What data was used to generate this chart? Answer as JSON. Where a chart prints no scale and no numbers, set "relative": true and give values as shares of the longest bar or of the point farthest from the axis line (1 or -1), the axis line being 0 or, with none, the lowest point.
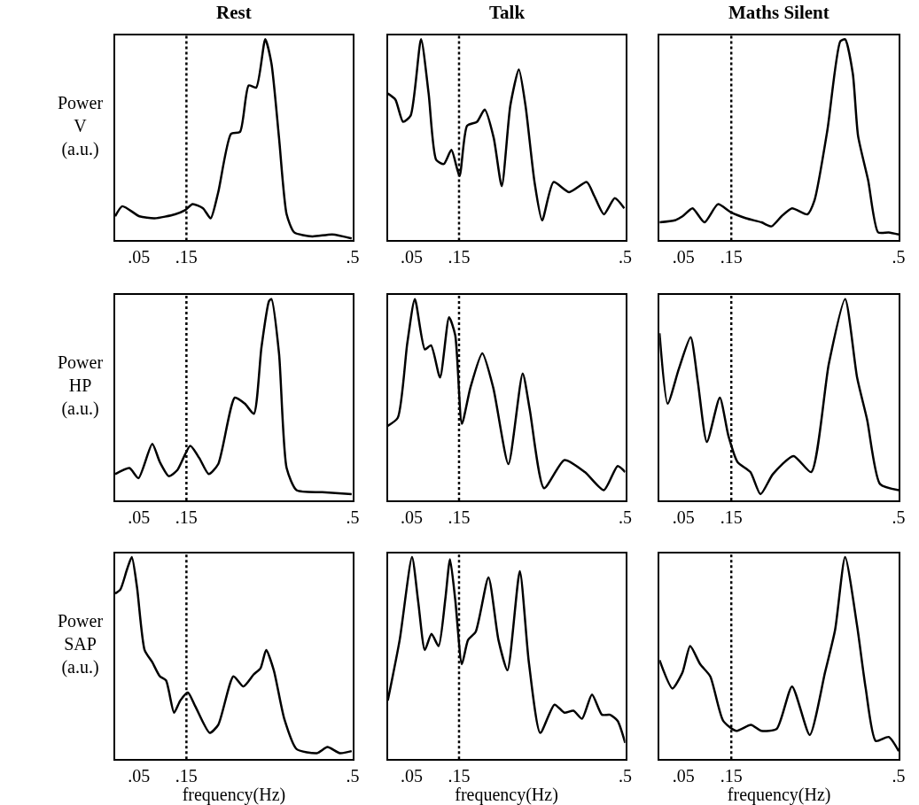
{
  "chart_data": [
    {
      "type": "line",
      "title": "Rest",
      "ylabel": "Power\nV\n(a.u.)",
      "relative": true,
      "xlim": [
        0,
        0.5
      ],
      "xticks": [
        {
          "value": 0.05,
          "label": ".05"
        },
        {
          "value": 0.15,
          "label": ".15"
        },
        {
          "value": 0.5,
          "label": ".5"
        }
      ],
      "ref_lines": [
        {
          "axis": "x",
          "value": 0.15,
          "color": "#000000",
          "line_style": "dotted"
        }
      ],
      "x": [
        0,
        0.015,
        0.051,
        0.083,
        0.126,
        0.147,
        0.163,
        0.185,
        0.201,
        0.217,
        0.244,
        0.263,
        0.281,
        0.297,
        0.316,
        0.329,
        0.345,
        0.361,
        0.377,
        0.415,
        0.457,
        0.498
      ],
      "series": [
        {
          "color": "#000000",
          "values": [
            0.12,
            0.17,
            0.12,
            0.11,
            0.13,
            0.15,
            0.18,
            0.16,
            0.11,
            0.24,
            0.53,
            0.54,
            0.77,
            0.76,
            1,
            0.88,
            0.51,
            0.13,
            0.04,
            0.02,
            0.03,
            0.01
          ]
        }
      ]
    },
    {
      "type": "line",
      "title": "Talk",
      "relative": true,
      "xlim": [
        0,
        0.5
      ],
      "xticks": [
        {
          "value": 0.05,
          "label": ".05"
        },
        {
          "value": 0.15,
          "label": ".15"
        },
        {
          "value": 0.5,
          "label": ".5"
        }
      ],
      "ref_lines": [
        {
          "axis": "x",
          "value": 0.15,
          "color": "#000000",
          "line_style": "dotted"
        }
      ],
      "x": [
        0,
        0.016,
        0.032,
        0.048,
        0.07,
        0.086,
        0.102,
        0.118,
        0.134,
        0.151,
        0.167,
        0.188,
        0.204,
        0.223,
        0.24,
        0.258,
        0.276,
        0.29,
        0.309,
        0.325,
        0.349,
        0.382,
        0.419,
        0.435,
        0.455,
        0.478,
        0.498
      ],
      "series": [
        {
          "color": "#000000",
          "values": [
            0.73,
            0.7,
            0.59,
            0.62,
            1,
            0.73,
            0.4,
            0.38,
            0.45,
            0.32,
            0.57,
            0.59,
            0.65,
            0.51,
            0.27,
            0.67,
            0.85,
            0.67,
            0.29,
            0.1,
            0.29,
            0.24,
            0.29,
            0.22,
            0.13,
            0.21,
            0.16
          ]
        }
      ]
    },
    {
      "type": "line",
      "title": "Maths Silent",
      "relative": true,
      "xlim": [
        0,
        0.5
      ],
      "xticks": [
        {
          "value": 0.05,
          "label": ".05"
        },
        {
          "value": 0.15,
          "label": ".15"
        },
        {
          "value": 0.5,
          "label": ".5"
        }
      ],
      "ref_lines": [
        {
          "axis": "x",
          "value": 0.15,
          "color": "#000000",
          "line_style": "dotted"
        }
      ],
      "x": [
        0,
        0.032,
        0.048,
        0.069,
        0.094,
        0.122,
        0.149,
        0.181,
        0.213,
        0.234,
        0.255,
        0.277,
        0.309,
        0.324,
        0.351,
        0.378,
        0.388,
        0.404,
        0.415,
        0.436,
        0.457,
        0.479,
        0.5
      ],
      "series": [
        {
          "color": "#000000",
          "values": [
            0.09,
            0.1,
            0.12,
            0.16,
            0.09,
            0.18,
            0.14,
            0.11,
            0.09,
            0.07,
            0.12,
            0.16,
            0.13,
            0.2,
            0.55,
            0.99,
            1,
            0.83,
            0.52,
            0.3,
            0.04,
            0.04,
            0.03
          ]
        }
      ]
    },
    {
      "type": "line",
      "ylabel": "Power\nHP\n(a.u.)",
      "relative": true,
      "xlim": [
        0,
        0.5
      ],
      "xticks": [
        {
          "value": 0.05,
          "label": ".05"
        },
        {
          "value": 0.15,
          "label": ".15"
        },
        {
          "value": 0.5,
          "label": ".5"
        }
      ],
      "ref_lines": [
        {
          "axis": "x",
          "value": 0.15,
          "color": "#000000",
          "line_style": "dotted"
        }
      ],
      "x": [
        0,
        0.03,
        0.049,
        0.078,
        0.094,
        0.113,
        0.131,
        0.158,
        0.177,
        0.197,
        0.217,
        0.252,
        0.273,
        0.292,
        0.308,
        0.324,
        0.329,
        0.345,
        0.361,
        0.382,
        0.436,
        0.498
      ],
      "series": [
        {
          "color": "#000000",
          "values": [
            0.13,
            0.16,
            0.11,
            0.28,
            0.19,
            0.12,
            0.15,
            0.27,
            0.21,
            0.13,
            0.18,
            0.51,
            0.48,
            0.43,
            0.76,
            0.99,
            1,
            0.73,
            0.16,
            0.05,
            0.04,
            0.03
          ]
        }
      ]
    },
    {
      "type": "line",
      "relative": true,
      "xlim": [
        0,
        0.5
      ],
      "xticks": [
        {
          "value": 0.05,
          "label": ".05"
        },
        {
          "value": 0.15,
          "label": ".15"
        },
        {
          "value": 0.5,
          "label": ".5"
        }
      ],
      "ref_lines": [
        {
          "axis": "x",
          "value": 0.15,
          "color": "#000000",
          "line_style": "dotted"
        }
      ],
      "x": [
        0,
        0.021,
        0.041,
        0.057,
        0.078,
        0.091,
        0.11,
        0.129,
        0.142,
        0.156,
        0.174,
        0.199,
        0.222,
        0.254,
        0.284,
        0.299,
        0.329,
        0.372,
        0.415,
        0.455,
        0.484,
        0.5
      ],
      "series": [
        {
          "color": "#000000",
          "values": [
            0.37,
            0.41,
            0.78,
            1,
            0.75,
            0.77,
            0.61,
            0.91,
            0.82,
            0.38,
            0.56,
            0.73,
            0.56,
            0.18,
            0.63,
            0.45,
            0.06,
            0.2,
            0.14,
            0.05,
            0.17,
            0.14
          ]
        }
      ]
    },
    {
      "type": "line",
      "relative": true,
      "xlim": [
        0,
        0.5
      ],
      "xticks": [
        {
          "value": 0.05,
          "label": ".05"
        },
        {
          "value": 0.15,
          "label": ".15"
        },
        {
          "value": 0.5,
          "label": ".5"
        }
      ],
      "ref_lines": [
        {
          "axis": "x",
          "value": 0.15,
          "color": "#000000",
          "line_style": "dotted"
        }
      ],
      "x": [
        0,
        0.017,
        0.04,
        0.065,
        0.08,
        0.099,
        0.126,
        0.144,
        0.163,
        0.19,
        0.211,
        0.237,
        0.28,
        0.317,
        0.354,
        0.388,
        0.413,
        0.434,
        0.461,
        0.5
      ],
      "series": [
        {
          "color": "#000000",
          "values": [
            0.83,
            0.48,
            0.65,
            0.81,
            0.59,
            0.29,
            0.51,
            0.32,
            0.19,
            0.14,
            0.03,
            0.13,
            0.22,
            0.14,
            0.68,
            1,
            0.61,
            0.4,
            0.08,
            0.05
          ]
        }
      ]
    },
    {
      "type": "line",
      "ylabel": "Power\nSAP\n(a.u.)",
      "xlabel": "frequency(Hz)",
      "relative": true,
      "xlim": [
        0,
        0.5
      ],
      "xticks": [
        {
          "value": 0.05,
          "label": ".05"
        },
        {
          "value": 0.15,
          "label": ".15"
        },
        {
          "value": 0.5,
          "label": ".5"
        }
      ],
      "ref_lines": [
        {
          "axis": "x",
          "value": 0.15,
          "color": "#000000",
          "line_style": "dotted"
        }
      ],
      "x": [
        0,
        0.011,
        0.025,
        0.035,
        0.046,
        0.062,
        0.078,
        0.094,
        0.107,
        0.124,
        0.137,
        0.153,
        0.169,
        0.199,
        0.217,
        0.249,
        0.27,
        0.292,
        0.306,
        0.318,
        0.334,
        0.356,
        0.382,
        0.425,
        0.447,
        0.473,
        0.498
      ],
      "series": [
        {
          "color": "#000000",
          "values": [
            0.82,
            0.84,
            0.94,
            1,
            0.85,
            0.54,
            0.48,
            0.41,
            0.39,
            0.23,
            0.29,
            0.33,
            0.26,
            0.13,
            0.17,
            0.41,
            0.36,
            0.42,
            0.45,
            0.54,
            0.44,
            0.2,
            0.05,
            0.03,
            0.06,
            0.03,
            0.04
          ]
        }
      ]
    },
    {
      "type": "line",
      "xlabel": "frequency(Hz)",
      "relative": true,
      "xlim": [
        0,
        0.5
      ],
      "xticks": [
        {
          "value": 0.05,
          "label": ".05"
        },
        {
          "value": 0.15,
          "label": ".15"
        },
        {
          "value": 0.5,
          "label": ".5"
        }
      ],
      "ref_lines": [
        {
          "axis": "x",
          "value": 0.15,
          "color": "#000000",
          "line_style": "dotted"
        }
      ],
      "x": [
        0,
        0.025,
        0.051,
        0.064,
        0.078,
        0.092,
        0.107,
        0.121,
        0.131,
        0.142,
        0.156,
        0.169,
        0.185,
        0.212,
        0.233,
        0.252,
        0.278,
        0.297,
        0.321,
        0.351,
        0.372,
        0.391,
        0.409,
        0.43,
        0.451,
        0.468,
        0.484,
        0.5
      ],
      "series": [
        {
          "color": "#000000",
          "values": [
            0.29,
            0.59,
            1,
            0.78,
            0.54,
            0.62,
            0.56,
            0.79,
            0.99,
            0.79,
            0.47,
            0.59,
            0.63,
            0.9,
            0.59,
            0.44,
            0.93,
            0.48,
            0.13,
            0.27,
            0.23,
            0.24,
            0.2,
            0.32,
            0.22,
            0.22,
            0.19,
            0.08
          ]
        }
      ]
    },
    {
      "type": "line",
      "xlabel": "frequency(Hz)",
      "relative": true,
      "xlim": [
        0,
        0.5
      ],
      "xticks": [
        {
          "value": 0.05,
          "label": ".05"
        },
        {
          "value": 0.15,
          "label": ".15"
        },
        {
          "value": 0.5,
          "label": ".5"
        }
      ],
      "ref_lines": [
        {
          "axis": "x",
          "value": 0.15,
          "color": "#000000",
          "line_style": "dotted"
        }
      ],
      "x": [
        0,
        0.027,
        0.048,
        0.064,
        0.085,
        0.106,
        0.133,
        0.16,
        0.191,
        0.213,
        0.245,
        0.277,
        0.314,
        0.346,
        0.367,
        0.388,
        0.413,
        0.431,
        0.452,
        0.479,
        0.5
      ],
      "series": [
        {
          "color": "#000000",
          "values": [
            0.49,
            0.35,
            0.43,
            0.56,
            0.47,
            0.41,
            0.19,
            0.14,
            0.17,
            0.14,
            0.15,
            0.36,
            0.12,
            0.43,
            0.64,
            1,
            0.66,
            0.35,
            0.09,
            0.11,
            0.04
          ]
        }
      ]
    }
  ]
}
